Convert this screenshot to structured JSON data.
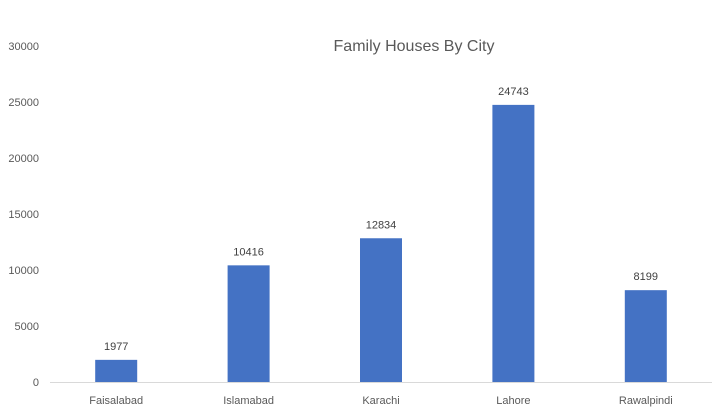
{
  "chart_data": {
    "type": "bar",
    "title": "Family Houses By  City",
    "xlabel": "",
    "ylabel": "",
    "categories": [
      "Faisalabad",
      "Islamabad",
      "Karachi",
      "Lahore",
      "Rawalpindi"
    ],
    "values": [
      1977,
      10416,
      12834,
      24743,
      8199
    ],
    "data_labels": [
      "1977",
      "10416",
      "12834",
      "24743",
      "8199"
    ],
    "ylim": [
      0,
      30000
    ],
    "yticks": [
      0,
      5000,
      10000,
      15000,
      20000,
      25000,
      30000
    ],
    "ytick_labels": [
      "0",
      "5000",
      "10000",
      "15000",
      "20000",
      "25000",
      "30000"
    ],
    "grid": false,
    "legend": "none",
    "colors": {
      "bar": "#4472c4",
      "axis": "#d9d9d9",
      "text": "#595959"
    }
  }
}
